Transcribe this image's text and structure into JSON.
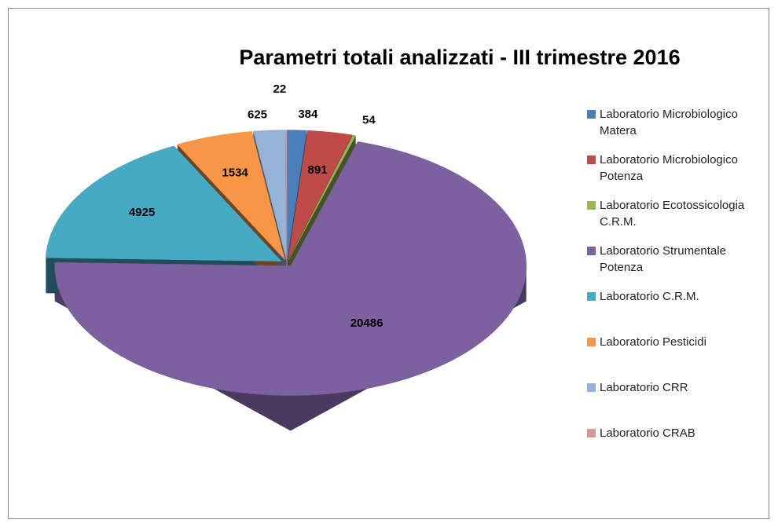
{
  "chart_data": {
    "type": "pie3d",
    "title": "Parametri totali analizzati - III trimestre 2016",
    "categories": [
      "Laboratorio Microbiologico Matera",
      "Laboratorio Microbiologico Potenza",
      "Laboratorio Ecotossicologia C.R.M.",
      "Laboratorio Strumentale Potenza",
      "Laboratorio C.R.M.",
      "Laboratorio Pesticidi",
      "Laboratorio CRR",
      "Laboratorio CRAB"
    ],
    "values": [
      384,
      891,
      54,
      20486,
      4925,
      1534,
      625,
      22
    ],
    "colors": [
      "#4a7ebb",
      "#be4b48",
      "#98b954",
      "#7d60a0",
      "#46aac5",
      "#f79646",
      "#95b3d7",
      "#d99694"
    ],
    "legend": "right"
  }
}
